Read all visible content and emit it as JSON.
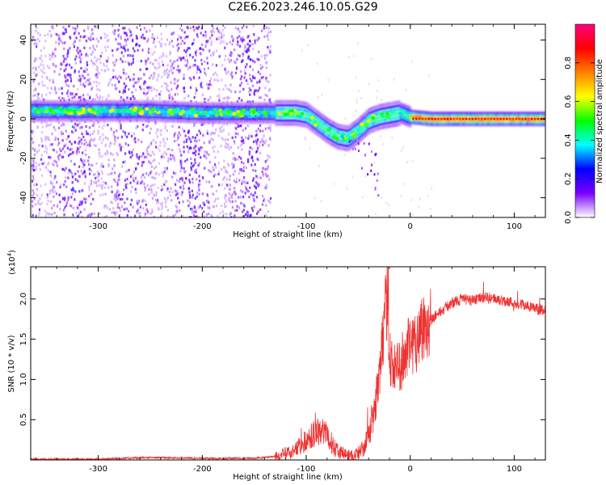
{
  "title": "C2E6.2023.246.10.05.G29",
  "chart_data": [
    {
      "type": "heatmap",
      "xlabel": "Height of straight line (km)",
      "ylabel": "Frequency (Hz)",
      "xlim": [
        -365,
        130
      ],
      "ylim": [
        -50,
        48
      ],
      "xticks": [
        -300,
        -200,
        -100,
        0,
        100
      ],
      "xtick_labels": [
        "-300",
        "-200",
        "-100",
        "0",
        "100"
      ],
      "yticks": [
        -40,
        -20,
        0,
        20,
        40
      ],
      "ytick_labels": [
        "-40",
        "-20",
        "0",
        "20",
        "40"
      ],
      "ridge": {
        "x": [
          -360,
          -300,
          -250,
          -200,
          -160,
          -130,
          -110,
          -100,
          -90,
          -80,
          -70,
          -60,
          -50,
          -40,
          -30,
          -20,
          -10,
          0,
          20,
          60,
          100,
          128
        ],
        "y": [
          4,
          4,
          4,
          3,
          3,
          3,
          3,
          2,
          -2,
          -6,
          -9,
          -10,
          -6,
          -1,
          1,
          2,
          3,
          1,
          0,
          0,
          0,
          0
        ]
      },
      "noise_region_x": [
        -365,
        -135
      ],
      "colorbar": {
        "label": "Normalized spectral amplitude",
        "ticks": [
          0.0,
          0.2,
          0.4,
          0.6,
          0.8
        ],
        "tick_labels": [
          "0.0",
          "0.2",
          "0.4",
          "0.6",
          "0.8"
        ],
        "colors": [
          "#ffffff",
          "#7a00ff",
          "#0000ff",
          "#00ffff",
          "#00ff00",
          "#ffff00",
          "#ff8000",
          "#ff0000",
          "#ff0080"
        ]
      }
    },
    {
      "type": "line",
      "xlabel": "Height of straight line (km)",
      "ylabel": "SNR (10 * v/v)",
      "scale_label": "(x10",
      "scale_exp": "4",
      "scale_close": ")",
      "xlim": [
        -365,
        130
      ],
      "ylim": [
        0,
        2.4
      ],
      "xticks": [
        -300,
        -200,
        -100,
        0,
        100
      ],
      "xtick_labels": [
        "-300",
        "-200",
        "-100",
        "0",
        "100"
      ],
      "yticks": [
        0.5,
        1.0,
        1.5,
        2.0
      ],
      "ytick_labels": [
        "0.5",
        "1.0",
        "1.5",
        "2.0"
      ],
      "series": [
        {
          "color": "#ee3333",
          "x": [
            -365,
            -300,
            -250,
            -200,
            -150,
            -125,
            -115,
            -105,
            -95,
            -85,
            -80,
            -75,
            -70,
            -65,
            -60,
            -55,
            -50,
            -45,
            -40,
            -35,
            -30,
            -25,
            -22,
            -20,
            -15,
            -10,
            -5,
            0,
            5,
            10,
            15,
            20,
            25,
            30,
            40,
            50,
            60,
            70,
            80,
            90,
            100,
            110,
            120,
            130
          ],
          "y": [
            0.01,
            0.01,
            0.03,
            0.02,
            0.02,
            0.05,
            0.1,
            0.18,
            0.3,
            0.4,
            0.28,
            0.2,
            0.12,
            0.08,
            0.06,
            0.05,
            0.08,
            0.15,
            0.3,
            0.6,
            1.0,
            1.6,
            2.1,
            1.3,
            1.1,
            1.2,
            1.3,
            1.4,
            1.5,
            1.6,
            1.7,
            1.75,
            1.8,
            1.85,
            1.95,
            2.0,
            1.98,
            2.02,
            2.0,
            1.98,
            1.95,
            1.92,
            1.88,
            1.85
          ]
        }
      ]
    }
  ]
}
